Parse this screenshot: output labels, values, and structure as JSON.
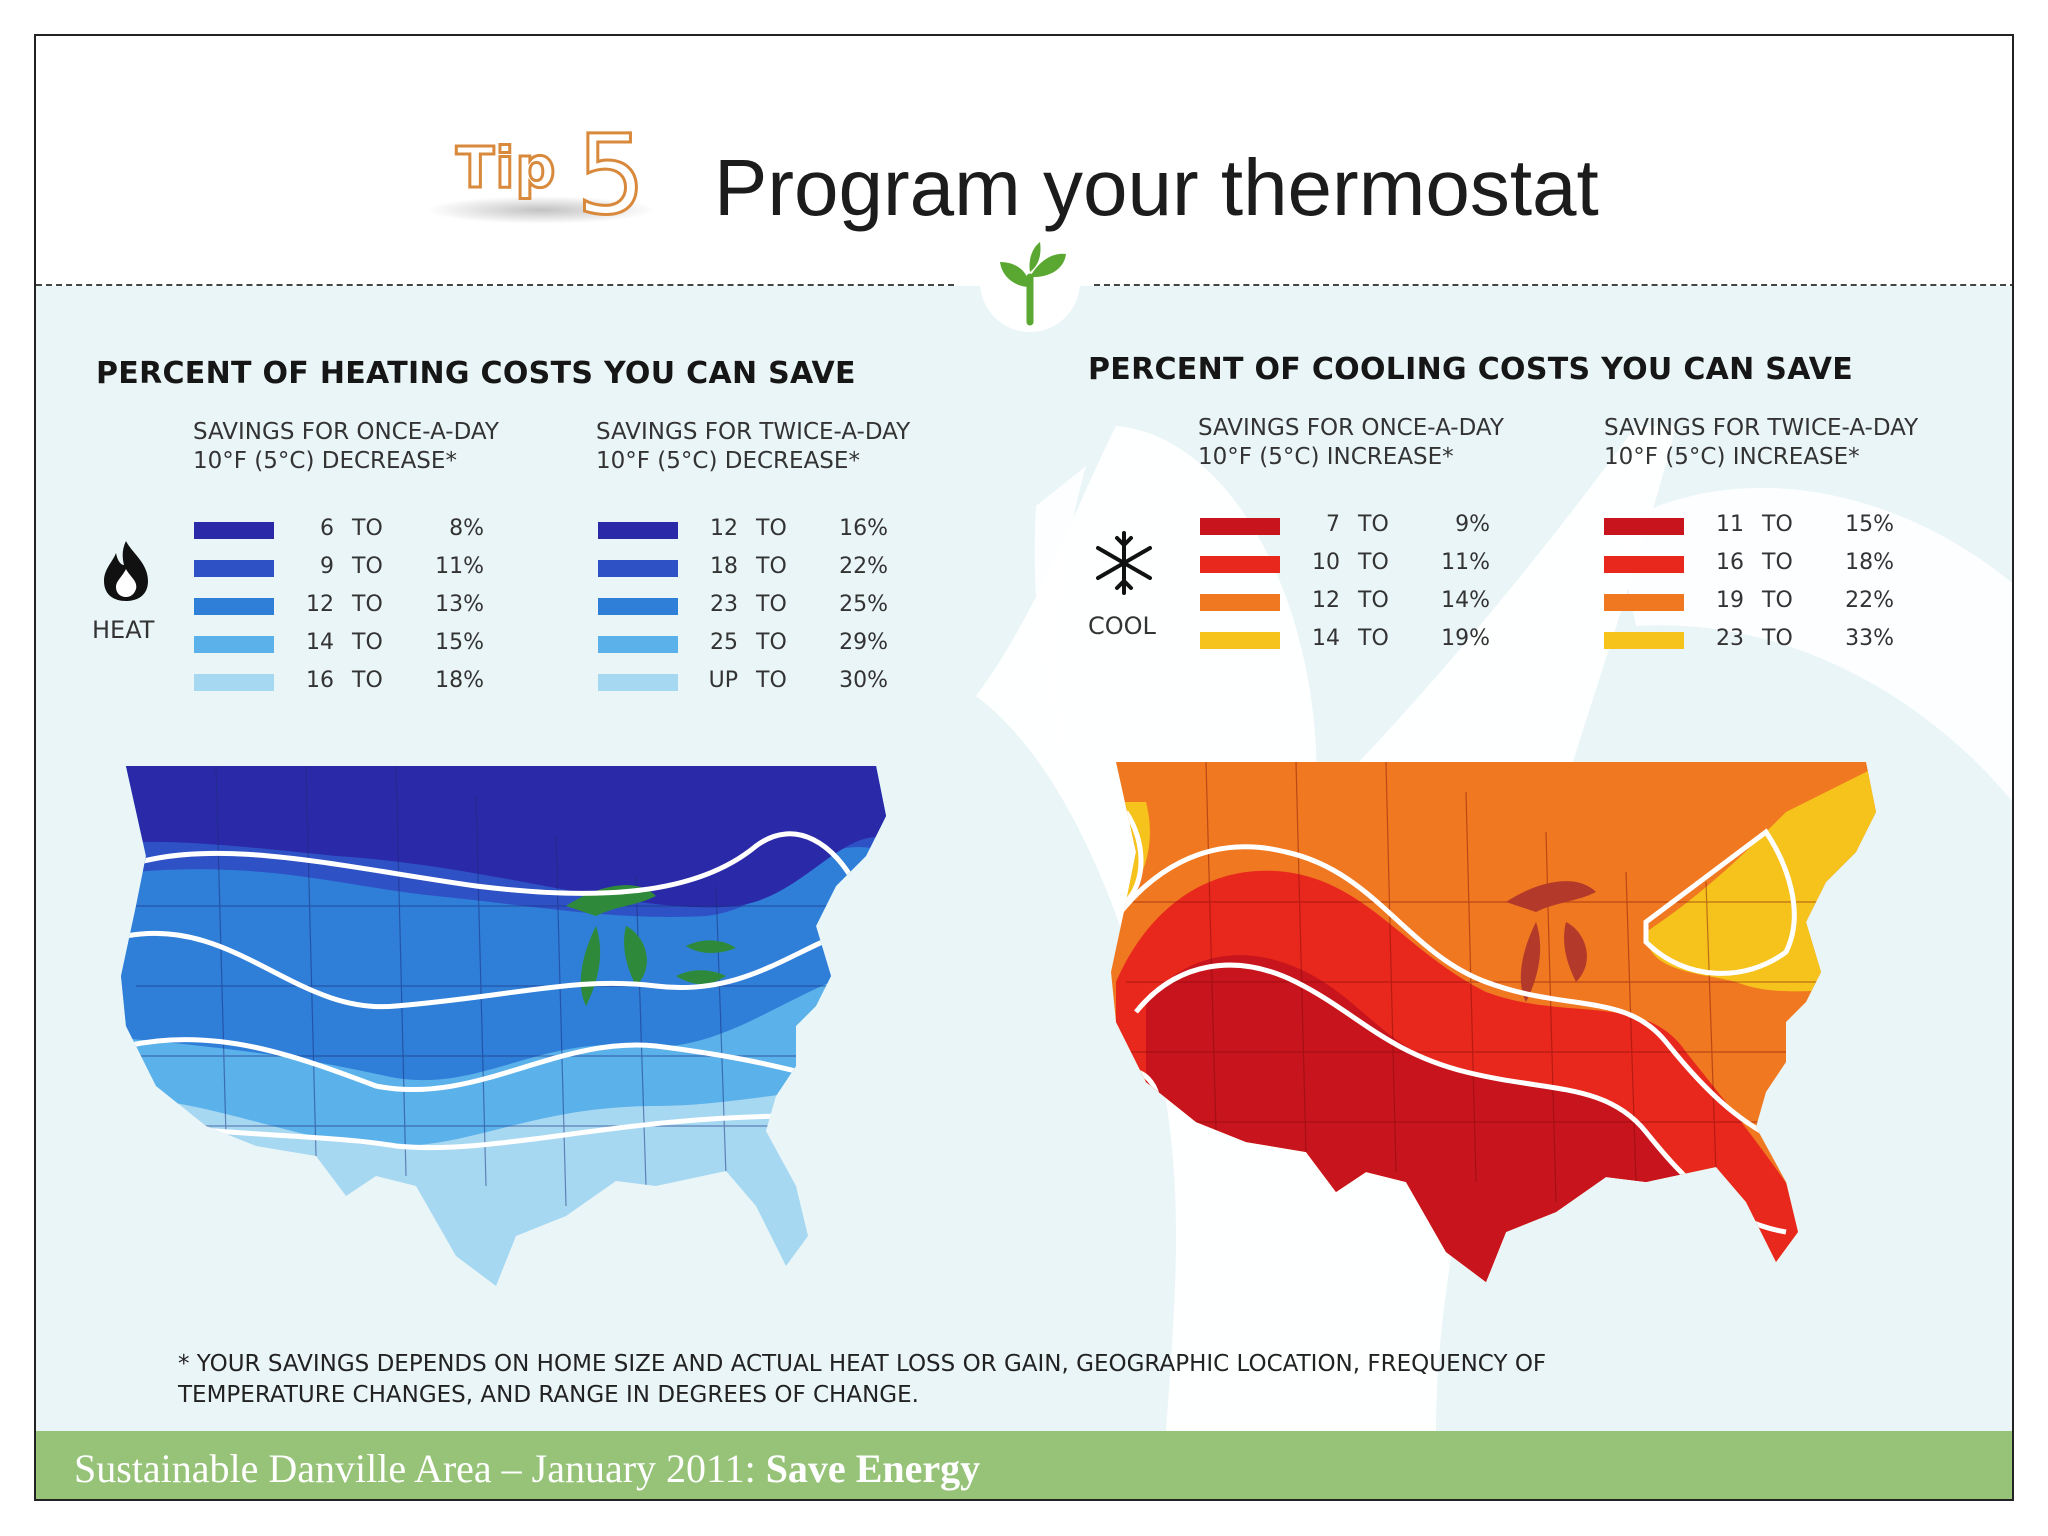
{
  "title": {
    "tip_word": "Tip",
    "tip_number": "5",
    "text": "Program your thermostat"
  },
  "heating": {
    "heading": "PERCENT OF HEATING COSTS YOU CAN SAVE",
    "once_head_1": "SAVINGS FOR ONCE-A-DAY",
    "once_head_2": "10°F (5°C) DECREASE*",
    "twice_head_1": "SAVINGS FOR TWICE-A-DAY",
    "twice_head_2": "10°F (5°C) DECREASE*",
    "icon_label": "HEAT",
    "icon": "flame-icon",
    "colors": [
      "#2a2aa8",
      "#2e52c6",
      "#2f7fd9",
      "#5bb1ea",
      "#a7d8f2"
    ],
    "once": [
      {
        "from": "6",
        "to": "TO",
        "upto": "8%"
      },
      {
        "from": "9",
        "to": "TO",
        "upto": "11%"
      },
      {
        "from": "12",
        "to": "TO",
        "upto": "13%"
      },
      {
        "from": "14",
        "to": "TO",
        "upto": "15%"
      },
      {
        "from": "16",
        "to": "TO",
        "upto": "18%"
      }
    ],
    "twice": [
      {
        "from": "12",
        "to": "TO",
        "upto": "16%"
      },
      {
        "from": "18",
        "to": "TO",
        "upto": "22%"
      },
      {
        "from": "23",
        "to": "TO",
        "upto": "25%"
      },
      {
        "from": "25",
        "to": "TO",
        "upto": "29%"
      },
      {
        "from": "UP",
        "to": "TO",
        "upto": "30%"
      }
    ]
  },
  "cooling": {
    "heading": "PERCENT OF COOLING COSTS YOU CAN SAVE",
    "once_head_1": "SAVINGS FOR ONCE-A-DAY",
    "once_head_2": "10°F (5°C) INCREASE*",
    "twice_head_1": "SAVINGS FOR TWICE-A-DAY",
    "twice_head_2": "10°F (5°C) INCREASE*",
    "icon_label": "COOL",
    "icon": "snowflake-icon",
    "colors": [
      "#c8141c",
      "#e8281c",
      "#f07820",
      "#f6c21c"
    ],
    "once": [
      {
        "from": "7",
        "to": "TO",
        "upto": "9%"
      },
      {
        "from": "10",
        "to": "TO",
        "upto": "11%"
      },
      {
        "from": "12",
        "to": "TO",
        "upto": "14%"
      },
      {
        "from": "14",
        "to": "TO",
        "upto": "19%"
      }
    ],
    "twice": [
      {
        "from": "11",
        "to": "TO",
        "upto": "15%"
      },
      {
        "from": "16",
        "to": "TO",
        "upto": "18%"
      },
      {
        "from": "19",
        "to": "TO",
        "upto": "22%"
      },
      {
        "from": "23",
        "to": "TO",
        "upto": "33%"
      }
    ]
  },
  "footnote": {
    "line1": "* YOUR SAVINGS DEPENDS ON HOME SIZE AND ACTUAL HEAT LOSS OR GAIN, GEOGRAPHIC LOCATION, FREQUENCY OF",
    "line2": "TEMPERATURE CHANGES, AND RANGE IN DEGREES OF CHANGE."
  },
  "footer": {
    "text": "Sustainable Danville Area – January 2011:",
    "strong": "Save Energy"
  },
  "colors": {
    "accent_orange": "#d9893b",
    "footer_green": "#96c378",
    "sprout_green": "#5aa832",
    "lakes_green": "#2e8a3a"
  }
}
